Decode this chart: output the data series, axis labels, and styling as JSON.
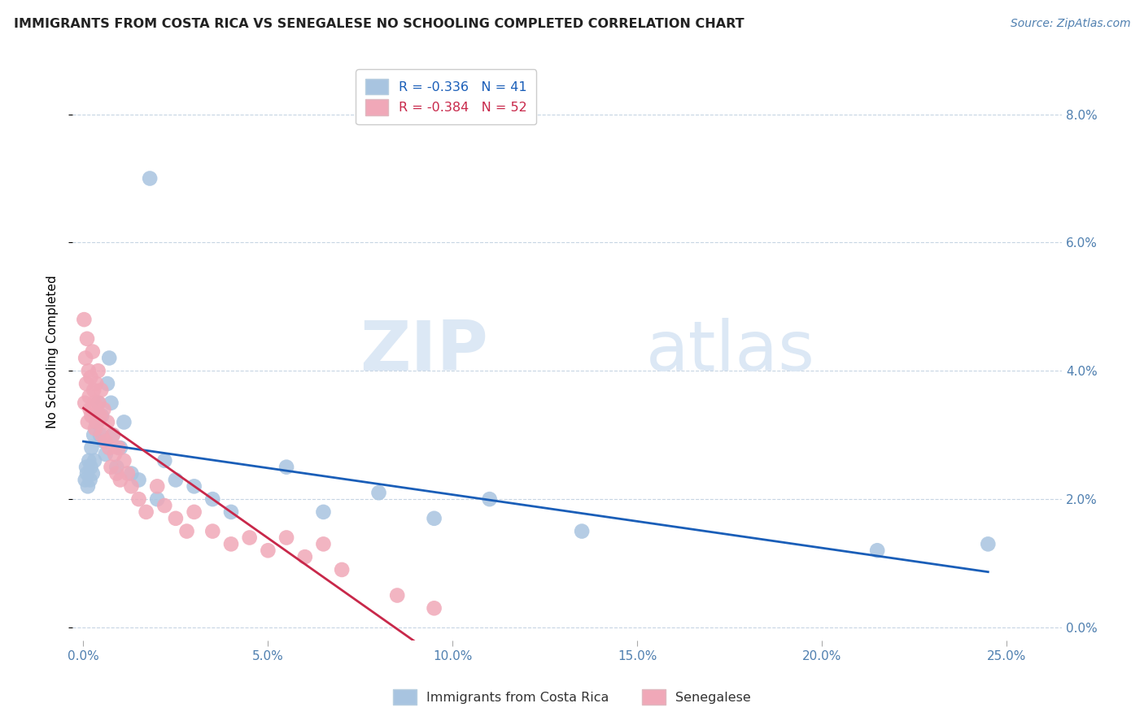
{
  "title": "IMMIGRANTS FROM COSTA RICA VS SENEGALESE NO SCHOOLING COMPLETED CORRELATION CHART",
  "source": "Source: ZipAtlas.com",
  "ylabel": "No Schooling Completed",
  "r1": "-0.336",
  "n1": "41",
  "r2": "-0.384",
  "n2": "52",
  "color_blue": "#a8c4e0",
  "color_pink": "#f0a8b8",
  "line_blue": "#1a5eb8",
  "line_pink": "#c8284a",
  "legend_label1": "Immigrants from Costa Rica",
  "legend_label2": "Senegalese",
  "xlim": [
    -0.3,
    26.5
  ],
  "ylim": [
    -0.2,
    8.8
  ],
  "x_ticks": [
    0,
    5,
    10,
    15,
    20,
    25
  ],
  "y_ticks": [
    0,
    2,
    4,
    6,
    8
  ],
  "blue_x": [
    0.05,
    0.08,
    0.1,
    0.12,
    0.15,
    0.18,
    0.2,
    0.22,
    0.25,
    0.28,
    0.3,
    0.35,
    0.4,
    0.45,
    0.5,
    0.55,
    0.6,
    0.65,
    0.7,
    0.75,
    0.8,
    0.9,
    1.0,
    1.1,
    1.3,
    1.5,
    1.8,
    2.0,
    2.2,
    2.5,
    3.0,
    3.5,
    4.0,
    5.5,
    6.5,
    8.0,
    9.5,
    11.0,
    13.5,
    21.5,
    24.5
  ],
  "blue_y": [
    2.3,
    2.5,
    2.4,
    2.2,
    2.6,
    2.3,
    2.5,
    2.8,
    2.4,
    3.0,
    2.6,
    3.2,
    3.5,
    3.0,
    3.3,
    2.9,
    2.7,
    3.8,
    4.2,
    3.5,
    3.0,
    2.5,
    2.8,
    3.2,
    2.4,
    2.3,
    7.0,
    2.0,
    2.6,
    2.3,
    2.2,
    2.0,
    1.8,
    2.5,
    1.8,
    2.1,
    1.7,
    2.0,
    1.5,
    1.2,
    1.3
  ],
  "pink_x": [
    0.02,
    0.04,
    0.06,
    0.08,
    0.1,
    0.12,
    0.14,
    0.16,
    0.18,
    0.2,
    0.22,
    0.25,
    0.28,
    0.3,
    0.32,
    0.35,
    0.38,
    0.4,
    0.42,
    0.45,
    0.48,
    0.5,
    0.55,
    0.6,
    0.65,
    0.7,
    0.75,
    0.8,
    0.85,
    0.9,
    0.95,
    1.0,
    1.1,
    1.2,
    1.3,
    1.5,
    1.7,
    2.0,
    2.2,
    2.5,
    2.8,
    3.0,
    3.5,
    4.0,
    4.5,
    5.0,
    5.5,
    6.0,
    6.5,
    7.0,
    8.5,
    9.5
  ],
  "pink_y": [
    4.8,
    3.5,
    4.2,
    3.8,
    4.5,
    3.2,
    4.0,
    3.6,
    3.4,
    3.9,
    3.3,
    4.3,
    3.7,
    3.5,
    3.1,
    3.8,
    3.2,
    4.0,
    3.5,
    3.3,
    3.7,
    3.0,
    3.4,
    2.9,
    3.2,
    2.8,
    2.5,
    3.0,
    2.7,
    2.4,
    2.8,
    2.3,
    2.6,
    2.4,
    2.2,
    2.0,
    1.8,
    2.2,
    1.9,
    1.7,
    1.5,
    1.8,
    1.5,
    1.3,
    1.4,
    1.2,
    1.4,
    1.1,
    1.3,
    0.9,
    0.5,
    0.3
  ]
}
